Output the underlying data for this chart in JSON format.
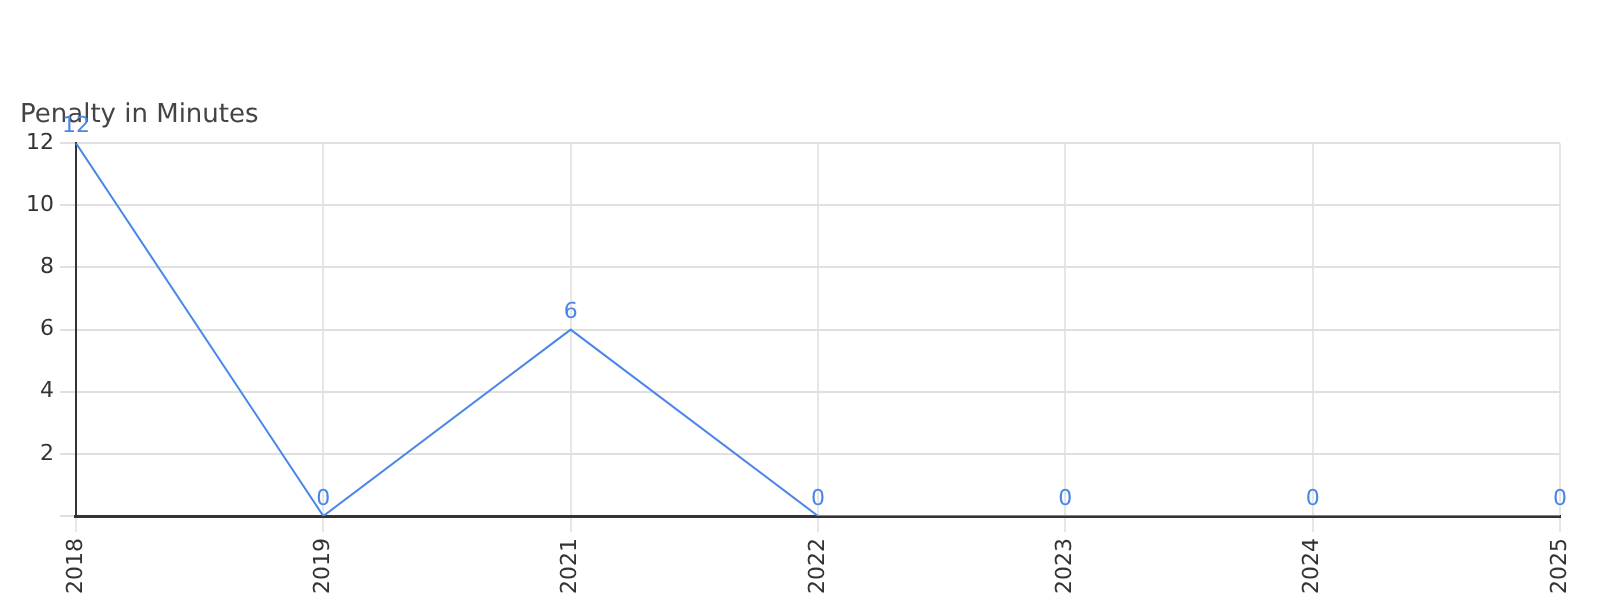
{
  "chart_data": {
    "type": "line",
    "title": "Penalty in Minutes",
    "categories": [
      "2018",
      "2019",
      "2021",
      "2022",
      "2023",
      "2024",
      "2025"
    ],
    "series": [
      {
        "color": "#4a86e8",
        "values": [
          12,
          0,
          6,
          0,
          0,
          0,
          0
        ]
      }
    ],
    "ylim": [
      0,
      12
    ],
    "yticks": [
      {
        "value": 0,
        "label": null
      },
      2,
      4,
      6,
      8,
      10,
      12
    ],
    "grid": true,
    "data_labels": true,
    "marker": "none",
    "line_style": "solid",
    "legend": false
  }
}
